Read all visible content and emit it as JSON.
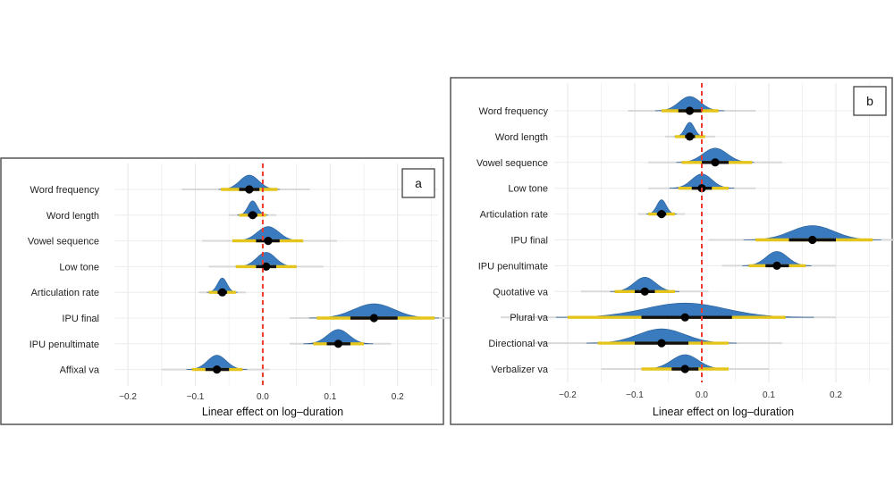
{
  "chart_data": [
    {
      "type": "ridgeline",
      "tag": "a",
      "xlabel": "Linear effect on log–duration",
      "xlim": [
        -0.22,
        0.26
      ],
      "xticks": [
        -0.2,
        -0.1,
        0.0,
        0.1,
        0.2
      ],
      "xtick_labels": [
        "−0.2",
        "−0.1",
        "0.0",
        "0.1",
        "0.2"
      ],
      "reference_line": 0.0,
      "rows": [
        {
          "label": "Word frequency",
          "mean": -0.02,
          "sd": 0.014,
          "ci50": [
            -0.035,
            -0.005
          ],
          "ci95": [
            -0.062,
            0.022
          ],
          "ci99": [
            -0.12,
            0.07
          ]
        },
        {
          "label": "Word length",
          "mean": -0.015,
          "sd": 0.007,
          "ci50": [
            -0.022,
            -0.008
          ],
          "ci95": [
            -0.035,
            0.005
          ],
          "ci99": [
            -0.05,
            0.02
          ]
        },
        {
          "label": "Vowel sequence",
          "mean": 0.008,
          "sd": 0.016,
          "ci50": [
            -0.01,
            0.025
          ],
          "ci95": [
            -0.045,
            0.06
          ],
          "ci99": [
            -0.09,
            0.11
          ]
        },
        {
          "label": "Low tone",
          "mean": 0.005,
          "sd": 0.014,
          "ci50": [
            -0.01,
            0.02
          ],
          "ci95": [
            -0.04,
            0.05
          ],
          "ci99": [
            -0.08,
            0.09
          ]
        },
        {
          "label": "Articulation rate",
          "mean": -0.06,
          "sd": 0.007,
          "ci50": [
            -0.067,
            -0.053
          ],
          "ci95": [
            -0.08,
            -0.04
          ],
          "ci99": [
            -0.095,
            -0.025
          ]
        },
        {
          "label": "IPU final",
          "mean": 0.165,
          "sd": 0.03,
          "ci50": [
            0.13,
            0.2
          ],
          "ci95": [
            0.08,
            0.255
          ],
          "ci99": [
            0.04,
            0.3
          ]
        },
        {
          "label": "IPU penultimate",
          "mean": 0.112,
          "sd": 0.016,
          "ci50": [
            0.095,
            0.13
          ],
          "ci95": [
            0.075,
            0.15
          ],
          "ci99": [
            0.04,
            0.19
          ]
        },
        {
          "label": "Affixal va",
          "mean": -0.068,
          "sd": 0.014,
          "ci50": [
            -0.085,
            -0.05
          ],
          "ci95": [
            -0.105,
            -0.03
          ],
          "ci99": [
            -0.15,
            0.01
          ]
        }
      ]
    },
    {
      "type": "ridgeline",
      "tag": "b",
      "xlabel": "Linear effect on log–duration",
      "xlim": [
        -0.22,
        0.28
      ],
      "xticks": [
        -0.2,
        -0.1,
        0.0,
        0.1,
        0.2
      ],
      "xtick_labels": [
        "−0.2",
        "−0.1",
        "0.0",
        "0.1",
        "0.2"
      ],
      "reference_line": 0.0,
      "rows": [
        {
          "label": "Word frequency",
          "mean": -0.018,
          "sd": 0.016,
          "ci50": [
            -0.035,
            0.0
          ],
          "ci95": [
            -0.06,
            0.025
          ],
          "ci99": [
            -0.11,
            0.08
          ]
        },
        {
          "label": "Word length",
          "mean": -0.018,
          "sd": 0.007,
          "ci50": [
            -0.025,
            -0.01
          ],
          "ci95": [
            -0.04,
            0.005
          ],
          "ci99": [
            -0.055,
            0.02
          ]
        },
        {
          "label": "Vowel sequence",
          "mean": 0.02,
          "sd": 0.018,
          "ci50": [
            0.0,
            0.04
          ],
          "ci95": [
            -0.03,
            0.075
          ],
          "ci99": [
            -0.08,
            0.12
          ]
        },
        {
          "label": "Low tone",
          "mean": 0.0,
          "sd": 0.015,
          "ci50": [
            -0.015,
            0.015
          ],
          "ci95": [
            -0.035,
            0.04
          ],
          "ci99": [
            -0.08,
            0.08
          ]
        },
        {
          "label": "Articulation rate",
          "mean": -0.06,
          "sd": 0.007,
          "ci50": [
            -0.067,
            -0.053
          ],
          "ci95": [
            -0.08,
            -0.04
          ],
          "ci99": [
            -0.095,
            -0.025
          ]
        },
        {
          "label": "IPU final",
          "mean": 0.165,
          "sd": 0.032,
          "ci50": [
            0.13,
            0.2
          ],
          "ci95": [
            0.08,
            0.255
          ],
          "ci99": [
            0.01,
            0.31
          ]
        },
        {
          "label": "IPU penultimate",
          "mean": 0.112,
          "sd": 0.016,
          "ci50": [
            0.095,
            0.13
          ],
          "ci95": [
            0.07,
            0.155
          ],
          "ci99": [
            0.03,
            0.2
          ]
        },
        {
          "label": "Quotative va",
          "mean": -0.085,
          "sd": 0.016,
          "ci50": [
            -0.1,
            -0.07
          ],
          "ci95": [
            -0.13,
            -0.04
          ],
          "ci99": [
            -0.18,
            0.01
          ]
        },
        {
          "label": "Plural va",
          "mean": -0.025,
          "sd": 0.06,
          "ci50": [
            -0.09,
            0.045
          ],
          "ci95": [
            -0.2,
            0.125
          ],
          "ci99": [
            -0.3,
            0.2
          ]
        },
        {
          "label": "Directional va",
          "mean": -0.06,
          "sd": 0.035,
          "ci50": [
            -0.1,
            -0.02
          ],
          "ci95": [
            -0.155,
            0.04
          ],
          "ci99": [
            -0.25,
            0.12
          ]
        },
        {
          "label": "Verbalizer va",
          "mean": -0.025,
          "sd": 0.02,
          "ci50": [
            -0.045,
            -0.005
          ],
          "ci95": [
            -0.09,
            0.04
          ],
          "ci99": [
            -0.15,
            0.1
          ]
        }
      ]
    }
  ]
}
